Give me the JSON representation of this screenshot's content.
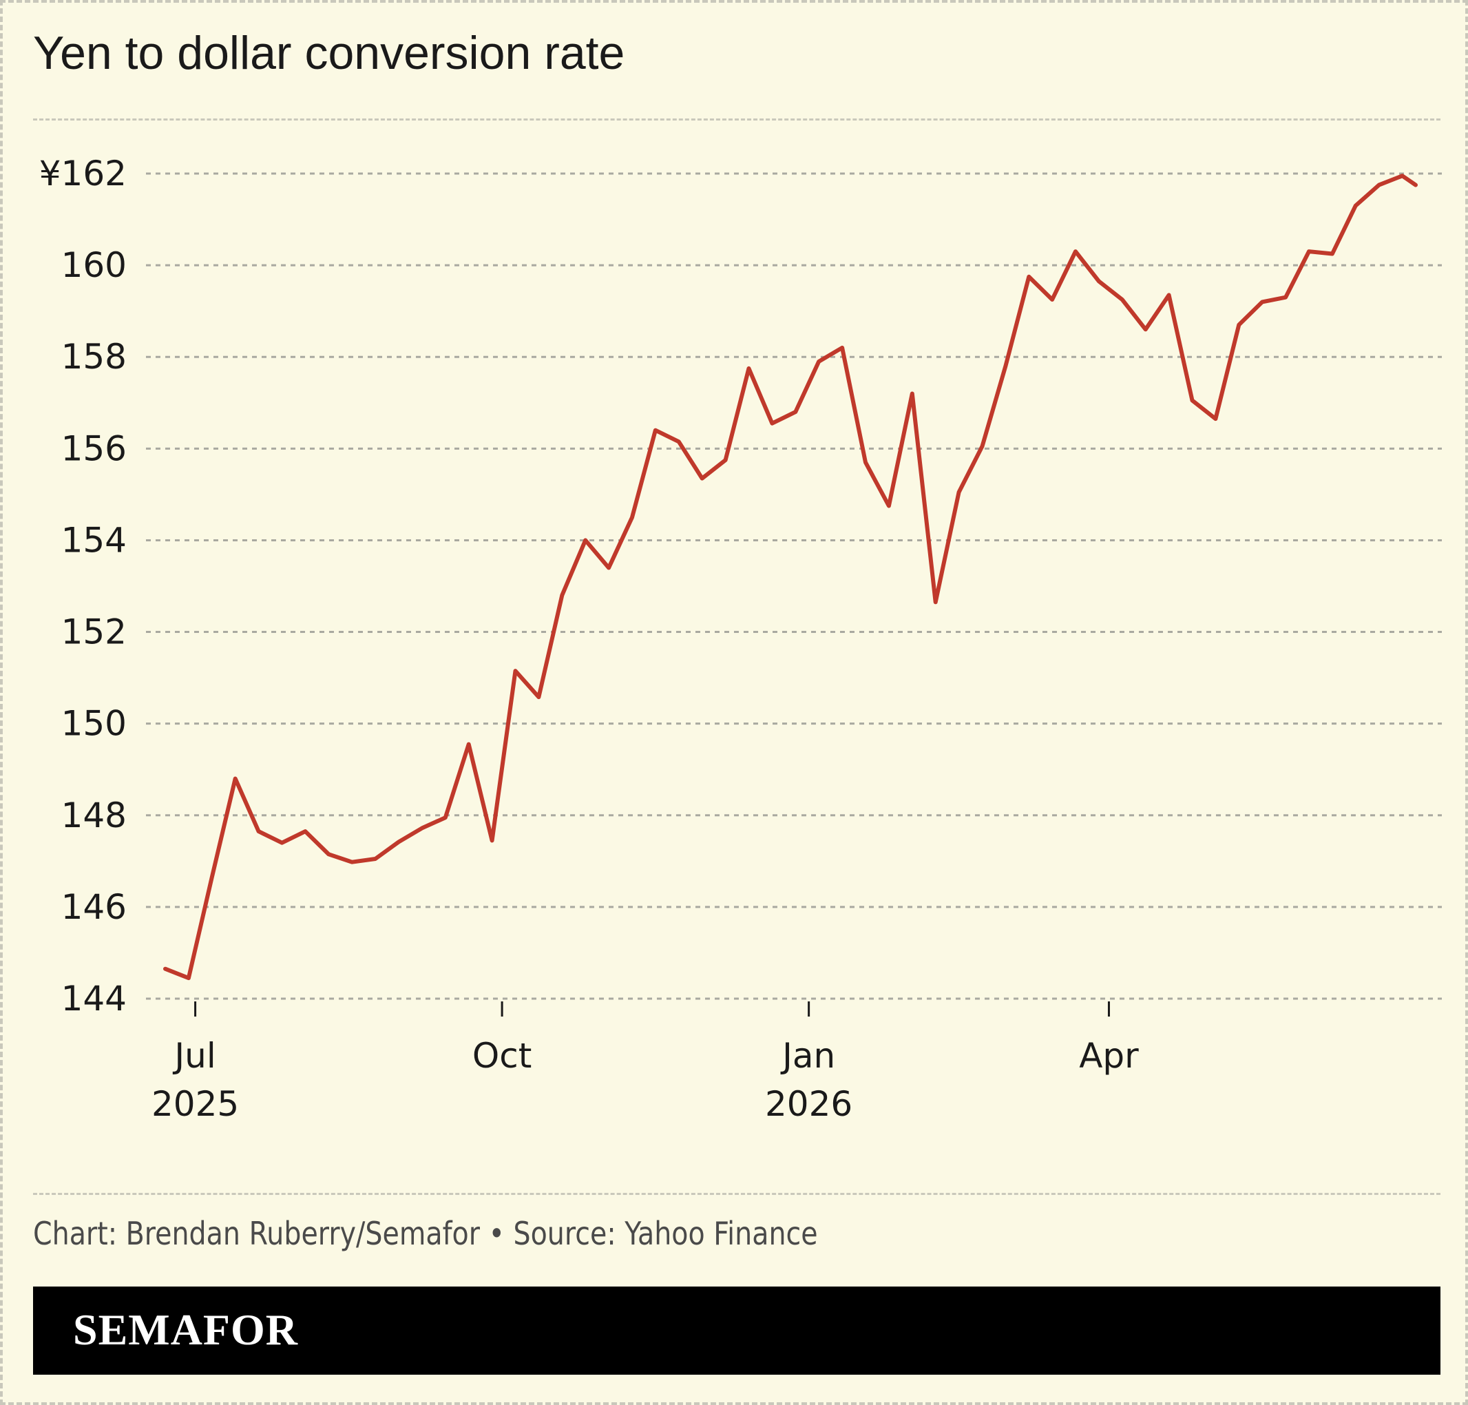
{
  "title": "Yen to dollar conversion rate",
  "credit": "Chart: Brendan Ruberry/Semafor • Source: Yahoo Finance",
  "logo": "SEMAFOR",
  "colors": {
    "background": "#fbf9e4",
    "line": "#c0392b",
    "grid": "#a9a9a0",
    "footer_bar": "#000000"
  },
  "chart_data": {
    "type": "line",
    "title": "Yen to dollar conversion rate",
    "xlabel": "",
    "ylabel": "",
    "ylim": [
      144,
      162
    ],
    "grid": true,
    "y_ticks": [
      {
        "value": 162,
        "label": "¥162"
      },
      {
        "value": 160,
        "label": "160"
      },
      {
        "value": 158,
        "label": "158"
      },
      {
        "value": 156,
        "label": "156"
      },
      {
        "value": 154,
        "label": "154"
      },
      {
        "value": 152,
        "label": "152"
      },
      {
        "value": 150,
        "label": "150"
      },
      {
        "value": 148,
        "label": "148"
      },
      {
        "value": 146,
        "label": "146"
      },
      {
        "value": 144,
        "label": "144"
      }
    ],
    "x_ticks": [
      {
        "date": "2025-07-01",
        "label": "Jul",
        "sublabel": "2025"
      },
      {
        "date": "2025-10-01",
        "label": "Oct",
        "sublabel": ""
      },
      {
        "date": "2026-01-01",
        "label": "Jan",
        "sublabel": "2026"
      },
      {
        "date": "2026-04-01",
        "label": "Apr",
        "sublabel": ""
      }
    ],
    "series": [
      {
        "x": [
          "2025-06-22",
          "2025-06-29",
          "2025-07-06",
          "2025-07-13",
          "2025-07-20",
          "2025-07-27",
          "2025-08-03",
          "2025-08-10",
          "2025-08-17",
          "2025-08-24",
          "2025-08-31",
          "2025-09-07",
          "2025-09-14",
          "2025-09-21",
          "2025-09-28",
          "2025-10-05",
          "2025-10-12",
          "2025-10-19",
          "2025-10-26",
          "2025-11-02",
          "2025-11-09",
          "2025-11-16",
          "2025-11-23",
          "2025-11-30",
          "2025-12-07",
          "2025-12-14",
          "2025-12-21",
          "2025-12-28",
          "2026-01-04",
          "2026-01-11",
          "2026-01-18",
          "2026-01-25",
          "2026-02-01",
          "2026-02-08",
          "2026-02-15",
          "2026-02-22",
          "2026-03-01",
          "2026-03-08",
          "2026-03-15",
          "2026-03-22",
          "2026-03-29",
          "2026-04-05",
          "2026-04-12",
          "2026-04-19",
          "2026-04-26",
          "2026-05-03",
          "2026-05-10",
          "2026-05-17",
          "2026-05-24",
          "2026-05-31",
          "2026-06-07",
          "2026-06-14",
          "2026-06-21",
          "2026-06-28",
          "2026-07-02"
        ],
        "values": [
          144.65,
          144.45,
          146.65,
          148.8,
          147.65,
          147.4,
          147.65,
          147.15,
          146.98,
          147.05,
          147.42,
          147.72,
          147.95,
          149.55,
          147.45,
          151.15,
          150.58,
          152.8,
          154.0,
          153.4,
          154.5,
          156.4,
          156.15,
          155.35,
          155.75,
          157.75,
          156.55,
          156.8,
          157.9,
          158.2,
          155.7,
          154.75,
          157.2,
          152.65,
          155.05,
          156.05,
          157.8,
          159.75,
          159.25,
          160.3,
          159.65,
          159.25,
          158.6,
          159.35,
          157.05,
          156.65,
          158.7,
          159.2,
          159.3,
          160.3,
          160.25,
          161.3,
          161.75,
          161.95,
          161.75
        ]
      }
    ]
  }
}
